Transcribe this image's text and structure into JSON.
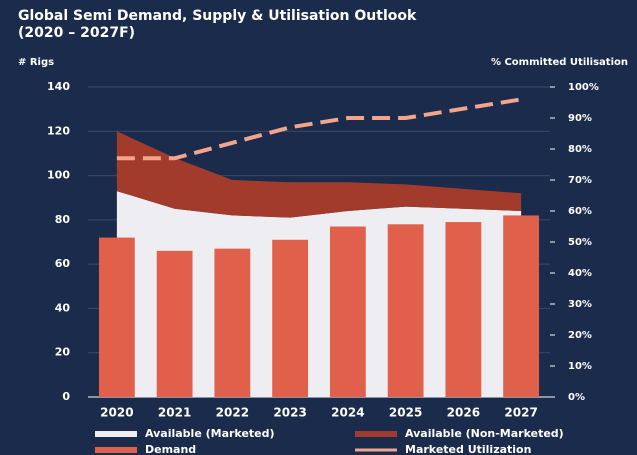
{
  "chart_data": {
    "type": "combo",
    "title": "Global Semi Demand, Supply & Utilisation Outlook",
    "subtitle": "(2020 – 2027F)",
    "ylabel": "# Rigs",
    "y2label": "% Committed Utilisation",
    "categories": [
      "2020",
      "2021",
      "2022",
      "2023",
      "2024",
      "2025",
      "2026",
      "2027"
    ],
    "series": [
      {
        "name": "Available (Marketed)",
        "type": "area",
        "color": "#eeeef2",
        "values": [
          93,
          85,
          82,
          81,
          84,
          86,
          85,
          84
        ]
      },
      {
        "name": "Available (Non-Marketed)",
        "type": "area",
        "color": "#a23b2c",
        "values": [
          27,
          23,
          16,
          16,
          13,
          10,
          9,
          8
        ]
      },
      {
        "name": "Demand",
        "type": "bar",
        "color": "#e0604b",
        "values": [
          72,
          66,
          67,
          71,
          77,
          78,
          79,
          82
        ]
      },
      {
        "name": "Marketed Utilization",
        "type": "line",
        "axis": "y2",
        "color": "#f2a58c",
        "dashed": true,
        "values": [
          77,
          77,
          82,
          87,
          90,
          90,
          93,
          96
        ]
      }
    ],
    "ylim": [
      0,
      140
    ],
    "yticks": [
      0,
      20,
      40,
      60,
      80,
      100,
      120,
      140
    ],
    "y2lim": [
      0,
      100
    ],
    "y2ticks": [
      {
        "value": 0,
        "label": "0%"
      },
      {
        "value": 10,
        "label": "10%"
      },
      {
        "value": 20,
        "label": "20%"
      },
      {
        "value": 30,
        "label": "30%"
      },
      {
        "value": 40,
        "label": "40%"
      },
      {
        "value": 50,
        "label": "50%"
      },
      {
        "value": 60,
        "label": "60%"
      },
      {
        "value": 70,
        "label": "70%"
      },
      {
        "value": 80,
        "label": "80%"
      },
      {
        "value": 90,
        "label": "90%"
      },
      {
        "value": 100,
        "label": "100%"
      }
    ],
    "grid": true,
    "legend": "bottom"
  }
}
